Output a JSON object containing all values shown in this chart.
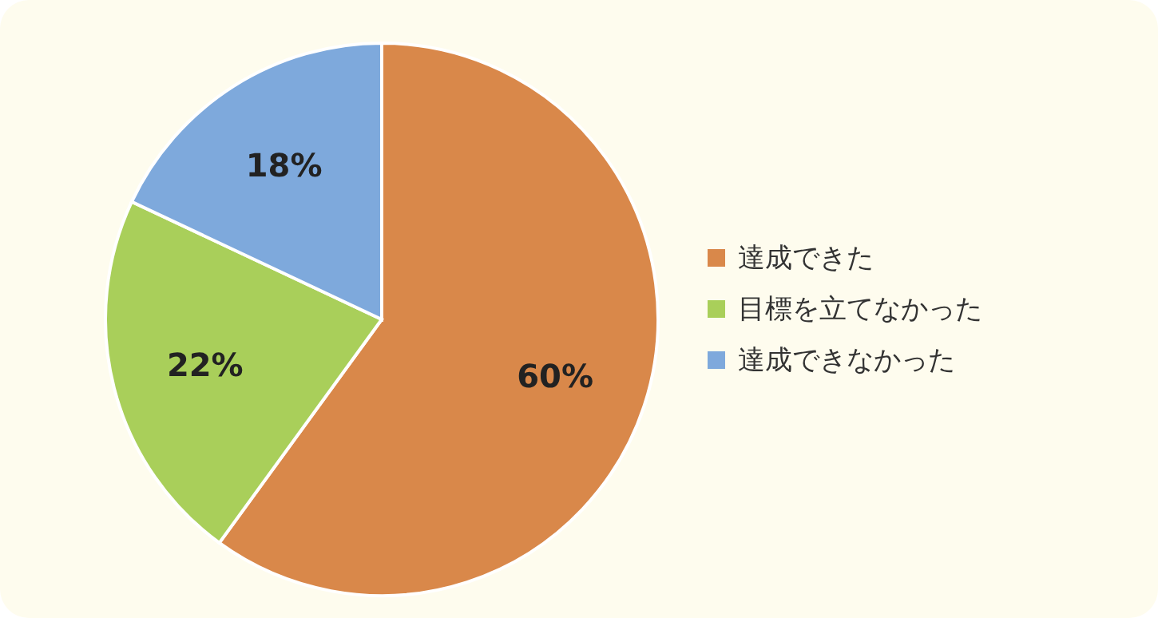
{
  "chart_data": {
    "type": "pie",
    "categories": [
      "達成できた",
      "目標を立てなかった",
      "達成できなかった"
    ],
    "values": [
      60,
      22,
      18
    ],
    "colors": [
      "#d9884a",
      "#a9cf5a",
      "#7ea9dc"
    ],
    "value_labels": [
      "60%",
      "22%",
      "18%"
    ],
    "legend": "right"
  }
}
